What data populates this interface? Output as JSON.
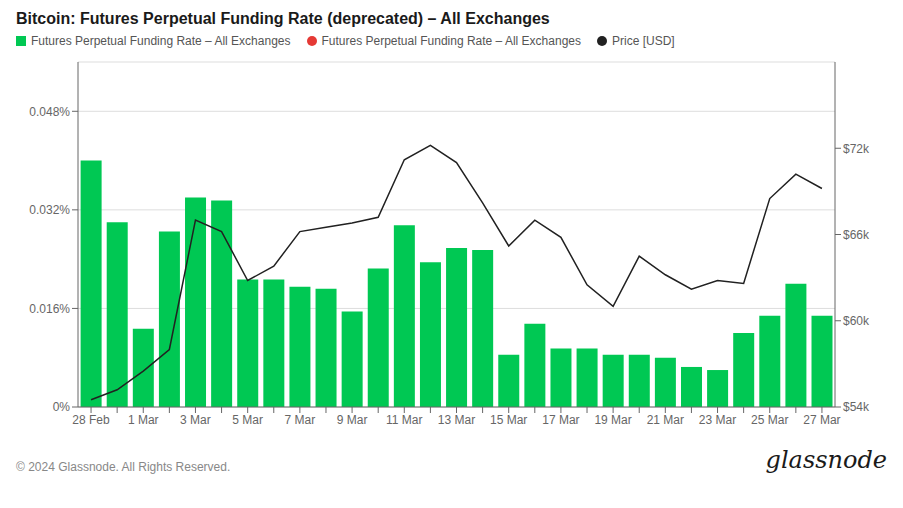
{
  "chart_data": {
    "type": "bar",
    "title": "Bitcoin: Futures Perpetual Funding Rate (deprecated) – All Exchanges",
    "categories": [
      "28 Feb",
      null,
      "1 Mar",
      null,
      "3 Mar",
      null,
      "5 Mar",
      null,
      "7 Mar",
      null,
      "9 Mar",
      null,
      "11 Mar",
      null,
      "13 Mar",
      null,
      "15 Mar",
      null,
      "17 Mar",
      null,
      "19 Mar",
      null,
      "21 Mar",
      null,
      "23 Mar",
      null,
      "25 Mar",
      null,
      "27 Mar"
    ],
    "series": [
      {
        "name": "Futures Perpetual Funding Rate – All Exchanges",
        "type": "bar",
        "color": "#00c853",
        "values": [
          0.04,
          0.03,
          0.0127,
          0.0285,
          0.034,
          0.0335,
          0.0207,
          0.0207,
          0.0195,
          0.0192,
          0.0155,
          0.0225,
          0.0295,
          0.0235,
          0.0258,
          0.0255,
          0.0085,
          0.0135,
          0.0095,
          0.0095,
          0.0085,
          0.0085,
          0.008,
          0.0065,
          0.006,
          0.012,
          0.0148,
          0.02,
          0.0148
        ]
      },
      {
        "name": "Futures Perpetual Funding Rate – All Exchanges",
        "type": "scatter",
        "color": "#e53935",
        "marker": "circle",
        "values": [
          null,
          null,
          null,
          null,
          null,
          null,
          null,
          null,
          null,
          null,
          null,
          null,
          null,
          null,
          null,
          null,
          null,
          null,
          null,
          null,
          null,
          null,
          null,
          null,
          null,
          null,
          null,
          null,
          null
        ]
      },
      {
        "name": "Price [USD]",
        "type": "line",
        "color": "#212121",
        "axis": "y2",
        "values": [
          54500,
          55200,
          56500,
          58000,
          67000,
          66200,
          62800,
          63800,
          66200,
          66500,
          66800,
          67200,
          71200,
          72200,
          71000,
          68200,
          65200,
          67000,
          65800,
          62500,
          61000,
          64500,
          63200,
          62200,
          62800,
          62600,
          68500,
          70200,
          69200
        ]
      }
    ],
    "ylim": [
      0,
      0.056
    ],
    "yticks": [
      {
        "value": 0,
        "label": "0%"
      },
      {
        "value": 0.016,
        "label": "0.016%"
      },
      {
        "value": 0.032,
        "label": "0.032%"
      },
      {
        "value": 0.048,
        "label": "0.048%"
      }
    ],
    "y2lim": [
      54000,
      78000
    ],
    "y2ticks": [
      {
        "value": 54000,
        "label": "$54k"
      },
      {
        "value": 60000,
        "label": "$60k"
      },
      {
        "value": 66000,
        "label": "$66k"
      },
      {
        "value": 72000,
        "label": "$72k"
      }
    ],
    "grid": true,
    "legend": "upper left",
    "annotations": [
      "© 2024 Glassnode. All Rights Reserved.",
      "glassnode"
    ]
  }
}
